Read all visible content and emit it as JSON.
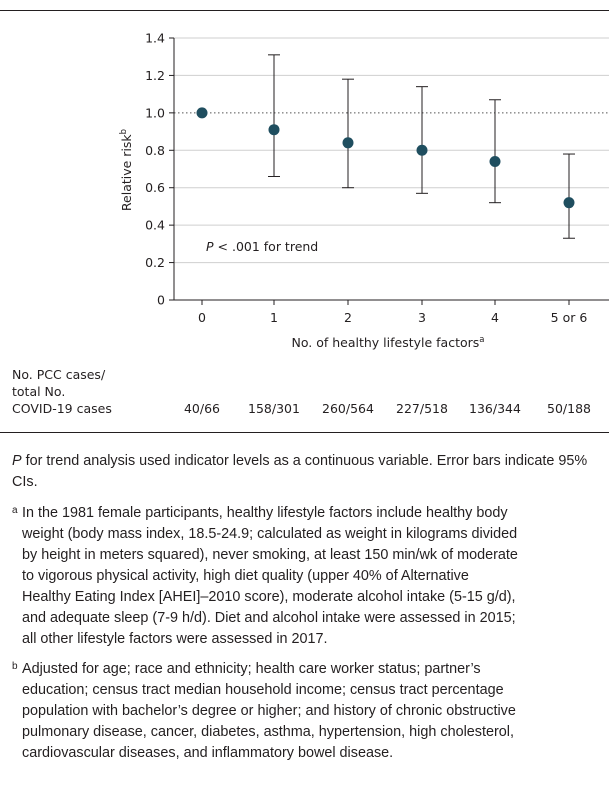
{
  "chart_data": {
    "type": "scatter",
    "title": "",
    "xlabel": "No. of healthy lifestyle factors",
    "xlabel_superscript": "a",
    "ylabel": "Relative risk",
    "ylabel_superscript": "b",
    "ylim": [
      0,
      1.4
    ],
    "yticks": [
      "0",
      "0.2",
      "0.4",
      "0.6",
      "0.8",
      "1.0",
      "1.2",
      "1.4"
    ],
    "categories": [
      "0",
      "1",
      "2",
      "3",
      "4",
      "5 or 6"
    ],
    "values": [
      1.0,
      0.91,
      0.84,
      0.8,
      0.74,
      0.52
    ],
    "ci_lower": [
      1.0,
      0.66,
      0.6,
      0.57,
      0.52,
      0.33
    ],
    "ci_upper": [
      1.0,
      1.31,
      1.18,
      1.14,
      1.07,
      0.78
    ],
    "reference_line": 1.0,
    "grid": "horizontal",
    "annotation": {
      "p": "P",
      "text": " < .001 for trend"
    }
  },
  "cases": {
    "label_lines": [
      "No. PCC cases/",
      "total No.",
      "COVID-19 cases"
    ],
    "values": [
      "40/66",
      "158/301",
      "260/564",
      "227/518",
      "136/344",
      "50/188"
    ]
  },
  "notes": {
    "main_italic": "P",
    "main_text": " for trend analysis used indicator levels as a continuous variable. Error bars indicate 95% CIs.",
    "footnote_a_mark": "a",
    "footnote_a_lines": [
      "In the 1981 female participants, healthy lifestyle factors include healthy body",
      "weight (body mass index, 18.5-24.9; calculated as weight in kilograms divided",
      "by height in meters squared), never smoking, at least 150 min/wk of moderate",
      "to vigorous physical activity, high diet quality (upper 40% of Alternative",
      "Healthy Eating Index [AHEI]–2010 score), moderate alcohol intake (5-15 g/d),",
      "and adequate sleep (7-9 h/d). Diet and alcohol intake were assessed in 2015;",
      "all other lifestyle factors were assessed in 2017."
    ],
    "footnote_b_mark": "b",
    "footnote_b_lines": [
      "Adjusted for age; race and ethnicity; health care worker status; partner’s",
      "education; census tract median household income; census tract percentage",
      "population with bachelor’s degree or higher; and history of chronic obstructive",
      "pulmonary disease, cancer, diabetes, asthma, hypertension, high cholesterol,",
      "cardiovascular diseases, and inflammatory bowel disease."
    ]
  },
  "colors": {
    "marker": "#1f4e5f",
    "text": "#231f20",
    "grid": "#cfcfcf",
    "reference": "#555555"
  }
}
